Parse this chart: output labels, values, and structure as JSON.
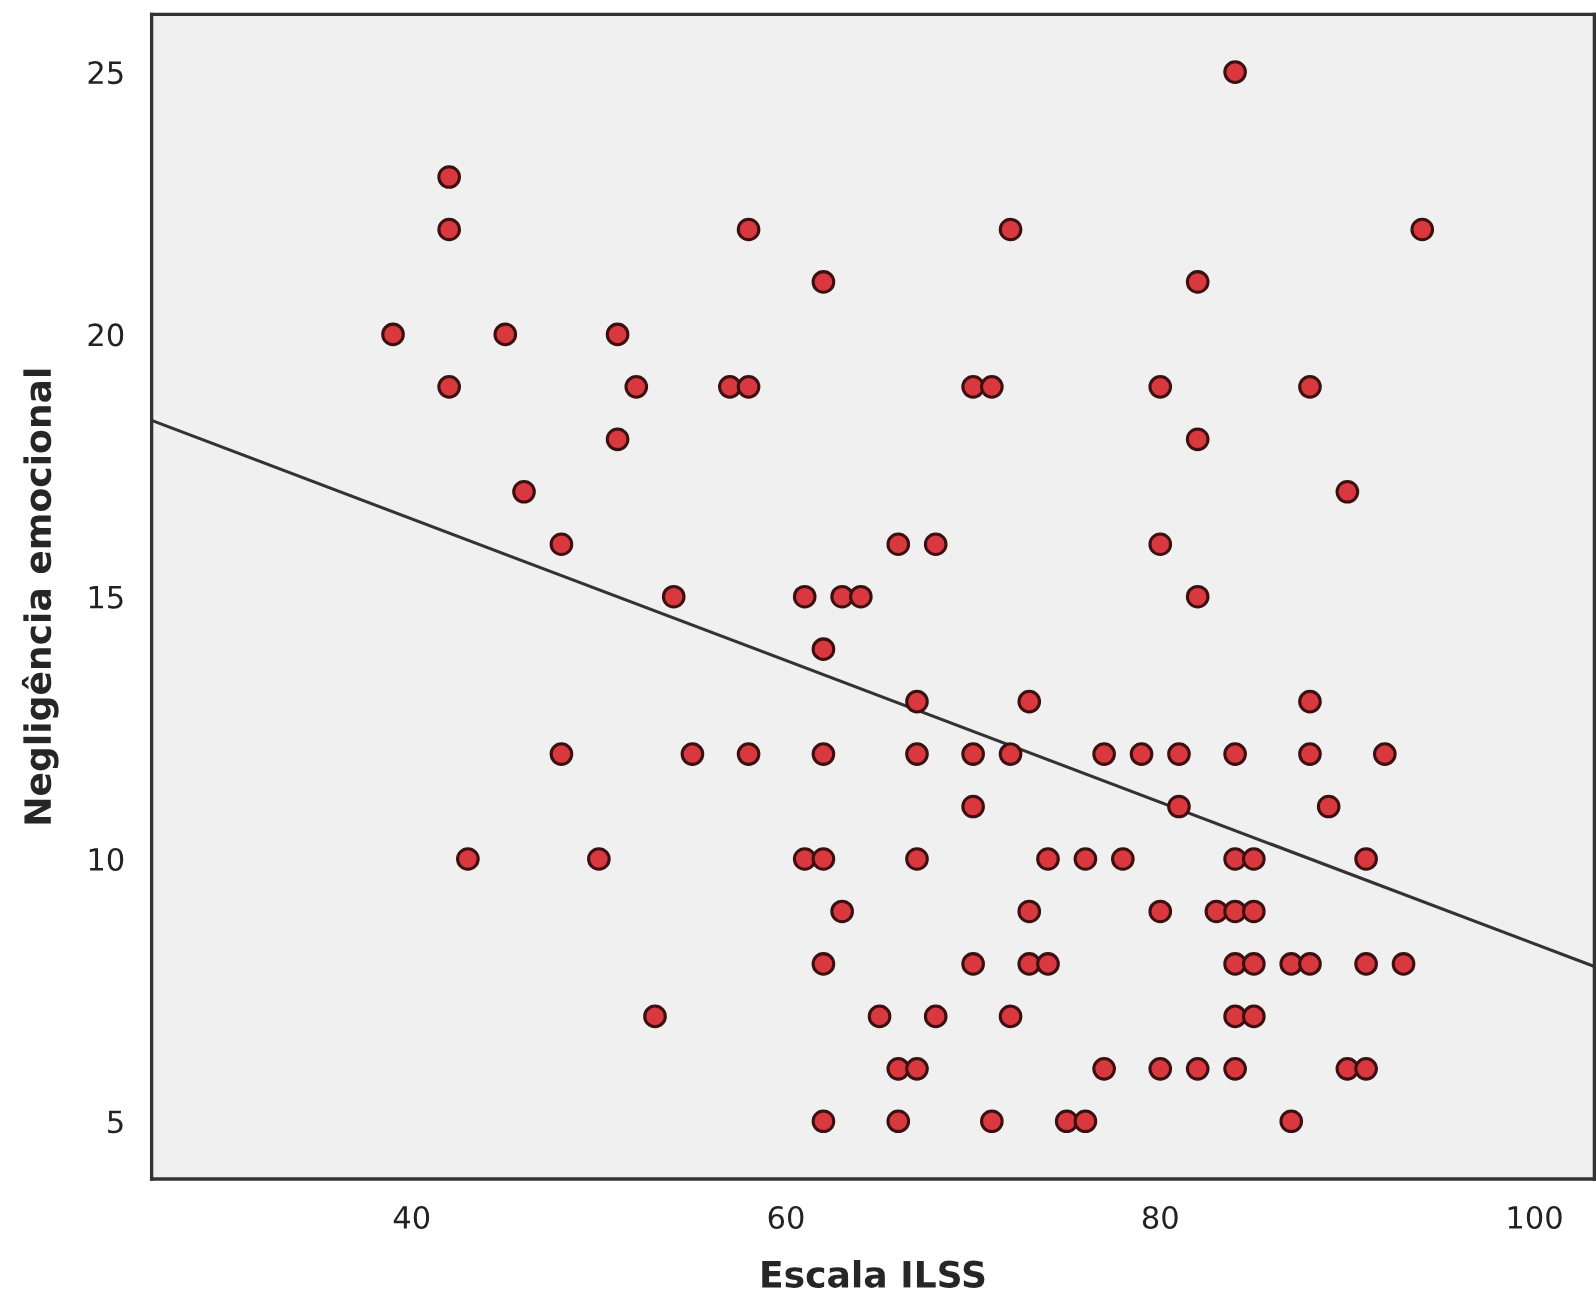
{
  "chart_data": {
    "type": "scatter",
    "xlabel": "Escala ILSS",
    "ylabel": "Negligência emocional",
    "xlim": [
      26.1,
      103.2
    ],
    "ylim": [
      3.9,
      26.1
    ],
    "xticks": [
      40,
      60,
      80,
      100
    ],
    "yticks": [
      5,
      10,
      15,
      20,
      25
    ],
    "grid": false,
    "legend": false,
    "marker": "circle",
    "series": [
      {
        "type": "scatter",
        "color": "#d9383f",
        "x": [
          84,
          42,
          42,
          58,
          72,
          94,
          62,
          82,
          39,
          45,
          51,
          42,
          52,
          57,
          58,
          70,
          71,
          80,
          88,
          51,
          82,
          46,
          90,
          48,
          66,
          68,
          80,
          54,
          61,
          63,
          64,
          82,
          62,
          67,
          73,
          88,
          48,
          55,
          58,
          62,
          67,
          70,
          72,
          77,
          79,
          81,
          84,
          88,
          92,
          70,
          81,
          89,
          43,
          50,
          61,
          62,
          67,
          74,
          76,
          78,
          84,
          85,
          91,
          63,
          73,
          80,
          83,
          84,
          85,
          62,
          70,
          73,
          74,
          84,
          85,
          87,
          88,
          91,
          93,
          53,
          65,
          68,
          72,
          84,
          85,
          66,
          67,
          77,
          80,
          82,
          84,
          90,
          91,
          62,
          66,
          71,
          75,
          76,
          87
        ],
        "values": [
          25,
          23,
          22,
          22,
          22,
          22,
          21,
          21,
          20,
          20,
          20,
          19,
          19,
          19,
          19,
          19,
          19,
          19,
          19,
          18,
          18,
          17,
          17,
          16,
          16,
          16,
          16,
          15,
          15,
          15,
          15,
          15,
          14,
          13,
          13,
          13,
          12,
          12,
          12,
          12,
          12,
          12,
          12,
          12,
          12,
          12,
          12,
          12,
          12,
          11,
          11,
          11,
          10,
          10,
          10,
          10,
          10,
          10,
          10,
          10,
          10,
          10,
          10,
          9,
          9,
          9,
          9,
          9,
          9,
          8,
          8,
          8,
          8,
          8,
          8,
          8,
          8,
          8,
          8,
          7,
          7,
          7,
          7,
          7,
          7,
          6,
          6,
          6,
          6,
          6,
          6,
          6,
          6,
          5,
          5,
          5,
          5,
          5,
          5
        ]
      },
      {
        "type": "line",
        "color": "#333333",
        "line_style": "solid",
        "marker": "none",
        "x": [
          26.1,
          103.2
        ],
        "values": [
          18.36,
          7.95
        ]
      }
    ]
  }
}
